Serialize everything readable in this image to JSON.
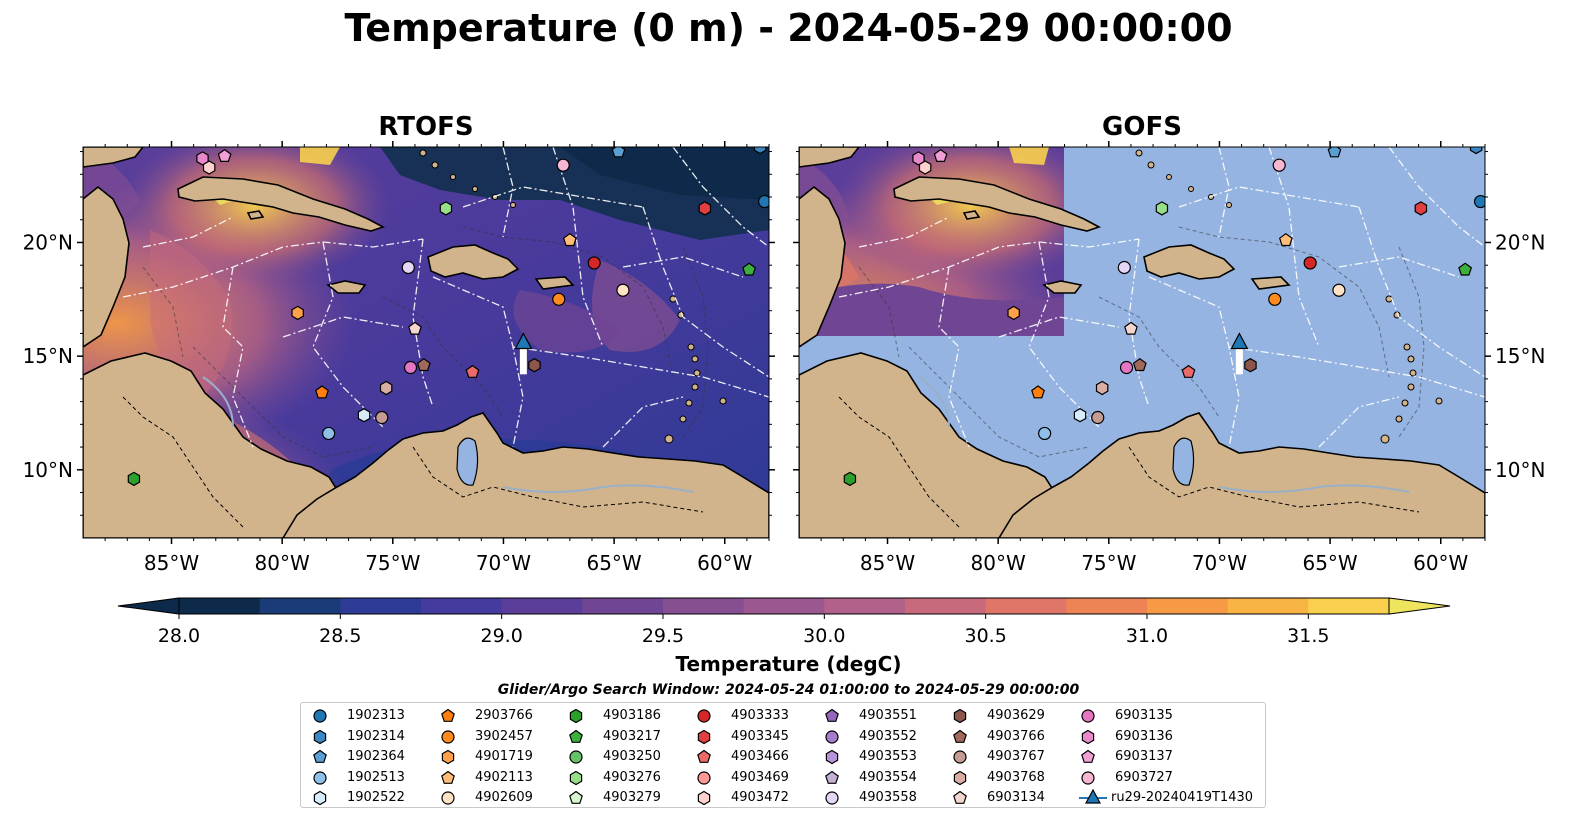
{
  "title": "Temperature (0 m) - 2024-05-29 00:00:00",
  "panels": [
    {
      "title": "RTOFS"
    },
    {
      "title": "GOFS"
    }
  ],
  "axes": {
    "lon_ticks": [
      "85°W",
      "80°W",
      "75°W",
      "70°W",
      "65°W",
      "60°W"
    ],
    "lat_ticks": [
      "20°N",
      "15°N",
      "10°N"
    ],
    "lon_values": [
      -85,
      -80,
      -75,
      -70,
      -65,
      -60
    ],
    "lat_values": [
      20,
      15,
      10
    ],
    "lon_range": [
      -89,
      -58
    ],
    "lat_range": [
      7,
      24.2
    ]
  },
  "colorbar": {
    "label": "Temperature (degC)",
    "range": [
      28.0,
      31.75
    ],
    "step": 0.25,
    "tick_labels": [
      "28.0",
      "28.5",
      "29.0",
      "29.5",
      "30.0",
      "30.5",
      "31.0",
      "31.5"
    ],
    "tick_values": [
      28.0,
      28.5,
      29.0,
      29.5,
      30.0,
      30.5,
      31.0,
      31.5
    ],
    "colormap": "thermal",
    "colors": [
      "#0d2a4a",
      "#1a3a78",
      "#2d3a96",
      "#453b9e",
      "#5b3e9a",
      "#704694",
      "#854f92",
      "#9a5790",
      "#b1618a",
      "#c96a7c",
      "#e07668",
      "#ee8455",
      "#f69a45",
      "#f9b543",
      "#f8d04d",
      "#eee45e"
    ],
    "extend": "both"
  },
  "land_color": "#d2b48c",
  "ocean_mask_color": "#95b4e1",
  "legend": {
    "title": "Glider/Argo Search Window: 2024-05-24 01:00:00 to 2024-05-29 00:00:00",
    "items": [
      {
        "id": "1902313",
        "color": "#1f77b4",
        "shape": "circle"
      },
      {
        "id": "1902314",
        "color": "#3a87c4",
        "shape": "hexagon"
      },
      {
        "id": "1902364",
        "color": "#5a9fd4",
        "shape": "pentagon"
      },
      {
        "id": "1902513",
        "color": "#8fc0e8",
        "shape": "circle"
      },
      {
        "id": "1902522",
        "color": "#d6ecfb",
        "shape": "hexagon"
      },
      {
        "id": "2903766",
        "color": "#ff7f0e",
        "shape": "pentagon"
      },
      {
        "id": "3902457",
        "color": "#ff8a1e",
        "shape": "circle"
      },
      {
        "id": "4901719",
        "color": "#ffa04a",
        "shape": "hexagon"
      },
      {
        "id": "4902113",
        "color": "#ffbb78",
        "shape": "pentagon"
      },
      {
        "id": "4902609",
        "color": "#ffe3c4",
        "shape": "circle"
      },
      {
        "id": "4903186",
        "color": "#2ca02c",
        "shape": "hexagon"
      },
      {
        "id": "4903217",
        "color": "#3cb03c",
        "shape": "pentagon"
      },
      {
        "id": "4903250",
        "color": "#66c266",
        "shape": "circle"
      },
      {
        "id": "4903276",
        "color": "#98df8a",
        "shape": "hexagon"
      },
      {
        "id": "4903279",
        "color": "#d8f5cf",
        "shape": "pentagon"
      },
      {
        "id": "4903333",
        "color": "#d62728",
        "shape": "circle"
      },
      {
        "id": "4903345",
        "color": "#e04040",
        "shape": "hexagon"
      },
      {
        "id": "4903466",
        "color": "#ec6a6a",
        "shape": "pentagon"
      },
      {
        "id": "4903469",
        "color": "#ff9896",
        "shape": "circle"
      },
      {
        "id": "4903472",
        "color": "#ffd2d0",
        "shape": "hexagon"
      },
      {
        "id": "4903551",
        "color": "#9467bd",
        "shape": "pentagon"
      },
      {
        "id": "4903552",
        "color": "#a47ccb",
        "shape": "circle"
      },
      {
        "id": "4903553",
        "color": "#b794d8",
        "shape": "hexagon"
      },
      {
        "id": "4903554",
        "color": "#c5b0d5",
        "shape": "pentagon"
      },
      {
        "id": "4903558",
        "color": "#e6d6f5",
        "shape": "circle"
      },
      {
        "id": "4903629",
        "color": "#8c564b",
        "shape": "hexagon"
      },
      {
        "id": "4903766",
        "color": "#a0695c",
        "shape": "pentagon"
      },
      {
        "id": "4903767",
        "color": "#c49c94",
        "shape": "circle"
      },
      {
        "id": "4903768",
        "color": "#d9aca4",
        "shape": "hexagon"
      },
      {
        "id": "6903134",
        "color": "#f3d6cf",
        "shape": "pentagon"
      },
      {
        "id": "6903135",
        "color": "#e377c2",
        "shape": "circle"
      },
      {
        "id": "6903136",
        "color": "#e889cb",
        "shape": "hexagon"
      },
      {
        "id": "6903137",
        "color": "#f29fd6",
        "shape": "pentagon"
      },
      {
        "id": "6903727",
        "color": "#f7b6d2",
        "shape": "circle"
      },
      {
        "id": "ru29-20240419T1430",
        "color": "#1f77b4",
        "shape": "triangle-line"
      }
    ]
  },
  "markers": [
    {
      "id": "1902313",
      "lon": -58.2,
      "lat": 21.8
    },
    {
      "id": "1902314",
      "lon": -58.4,
      "lat": 24.2
    },
    {
      "id": "1902364",
      "lon": -64.8,
      "lat": 24.0
    },
    {
      "id": "1902513",
      "lon": -77.9,
      "lat": 11.6
    },
    {
      "id": "1902522",
      "lon": -76.3,
      "lat": 12.4
    },
    {
      "id": "2903766",
      "lon": -78.2,
      "lat": 13.4
    },
    {
      "id": "3902457",
      "lon": -67.5,
      "lat": 17.5
    },
    {
      "id": "4901719",
      "lon": -79.3,
      "lat": 16.9
    },
    {
      "id": "4902113",
      "lon": -67.0,
      "lat": 20.1
    },
    {
      "id": "4902609",
      "lon": -64.6,
      "lat": 17.9
    },
    {
      "id": "4903186",
      "lon": -86.7,
      "lat": 9.6
    },
    {
      "id": "4903217",
      "lon": -58.9,
      "lat": 18.8
    },
    {
      "id": "4903276",
      "lon": -72.6,
      "lat": 21.5
    },
    {
      "id": "4903333",
      "lon": -65.9,
      "lat": 19.1
    },
    {
      "id": "4903345",
      "lon": -60.9,
      "lat": 21.5
    },
    {
      "id": "4903466",
      "lon": -71.4,
      "lat": 14.3
    },
    {
      "id": "4903472",
      "lon": -83.3,
      "lat": 23.3
    },
    {
      "id": "4903558",
      "lon": -74.3,
      "lat": 18.9
    },
    {
      "id": "4903629",
      "lon": -68.6,
      "lat": 14.6
    },
    {
      "id": "4903766",
      "lon": -73.6,
      "lat": 14.6
    },
    {
      "id": "4903767",
      "lon": -75.5,
      "lat": 12.3
    },
    {
      "id": "4903768",
      "lon": -75.3,
      "lat": 13.6
    },
    {
      "id": "6903134",
      "lon": -74.0,
      "lat": 16.2
    },
    {
      "id": "6903135",
      "lon": -74.2,
      "lat": 14.5
    },
    {
      "id": "6903136",
      "lon": -83.6,
      "lat": 23.7
    },
    {
      "id": "6903137",
      "lon": -82.6,
      "lat": 23.8
    },
    {
      "id": "6903727",
      "lon": -67.3,
      "lat": 23.4
    }
  ],
  "glider_track": {
    "id": "ru29-20240419T1430",
    "lon": -69.1,
    "lat_start": 14.2,
    "lat_end": 15.6
  }
}
